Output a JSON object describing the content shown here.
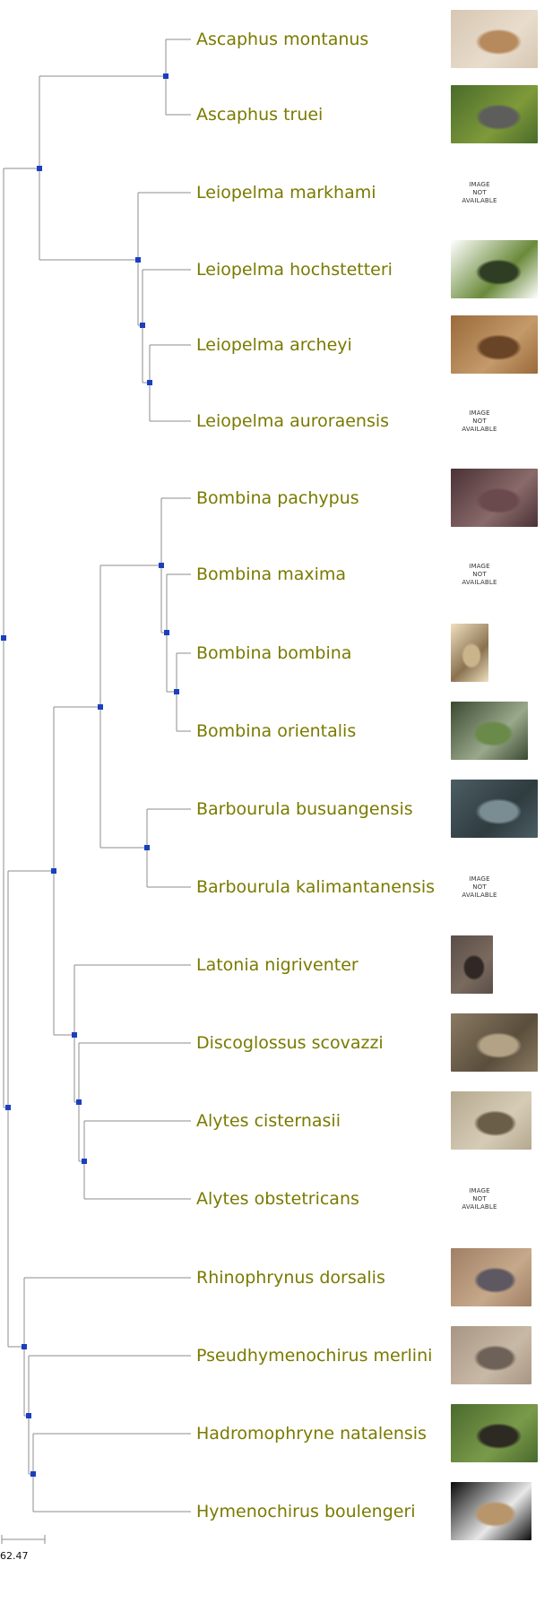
{
  "taxa": [
    {
      "name": "Ascaphus montanus",
      "image": "photo-tailed-frog-pale"
    },
    {
      "name": "Ascaphus truei",
      "image": "photo-tailed-frog-moss"
    },
    {
      "name": "Leiopelma markhami",
      "image": "not-available"
    },
    {
      "name": "Leiopelma hochstetteri",
      "image": "photo-frog-green-black"
    },
    {
      "name": "Leiopelma archeyi",
      "image": "photo-frog-brown"
    },
    {
      "name": "Leiopelma auroraensis",
      "image": "not-available"
    },
    {
      "name": "Bombina pachypus",
      "image": "photo-toad-dark"
    },
    {
      "name": "Bombina maxima",
      "image": "not-available"
    },
    {
      "name": "Bombina bombina",
      "image": "illustration-toads-plate"
    },
    {
      "name": "Bombina orientalis",
      "image": "photo-toad-green"
    },
    {
      "name": "Barbourula busuangensis",
      "image": "photo-frog-grey"
    },
    {
      "name": "Barbourula kalimantanensis",
      "image": "not-available"
    },
    {
      "name": "Latonia nigriventer",
      "image": "photo-frog-black"
    },
    {
      "name": "Discoglossus scovazzi",
      "image": "photo-frog-ground"
    },
    {
      "name": "Alytes cisternasii",
      "image": "photo-toad-spotted"
    },
    {
      "name": "Alytes obstetricans",
      "image": "not-available"
    },
    {
      "name": "Rhinophrynus dorsalis",
      "image": "photo-toad-burrowing"
    },
    {
      "name": "Pseudhymenochirus merlini",
      "image": "photo-frog-aquatic"
    },
    {
      "name": "Hadromophryne natalensis",
      "image": "photo-frog-leaves"
    },
    {
      "name": "Hymenochirus boulengeri",
      "image": "photo-specimen-tagged"
    }
  ],
  "not_available_text": [
    "IMAGE",
    "NOT",
    "AVAILABLE"
  ],
  "scale_label": "62.47",
  "colors": {
    "branch": "#8c8c8c",
    "node": "#1a3fbf",
    "label": "#7a7a00"
  }
}
